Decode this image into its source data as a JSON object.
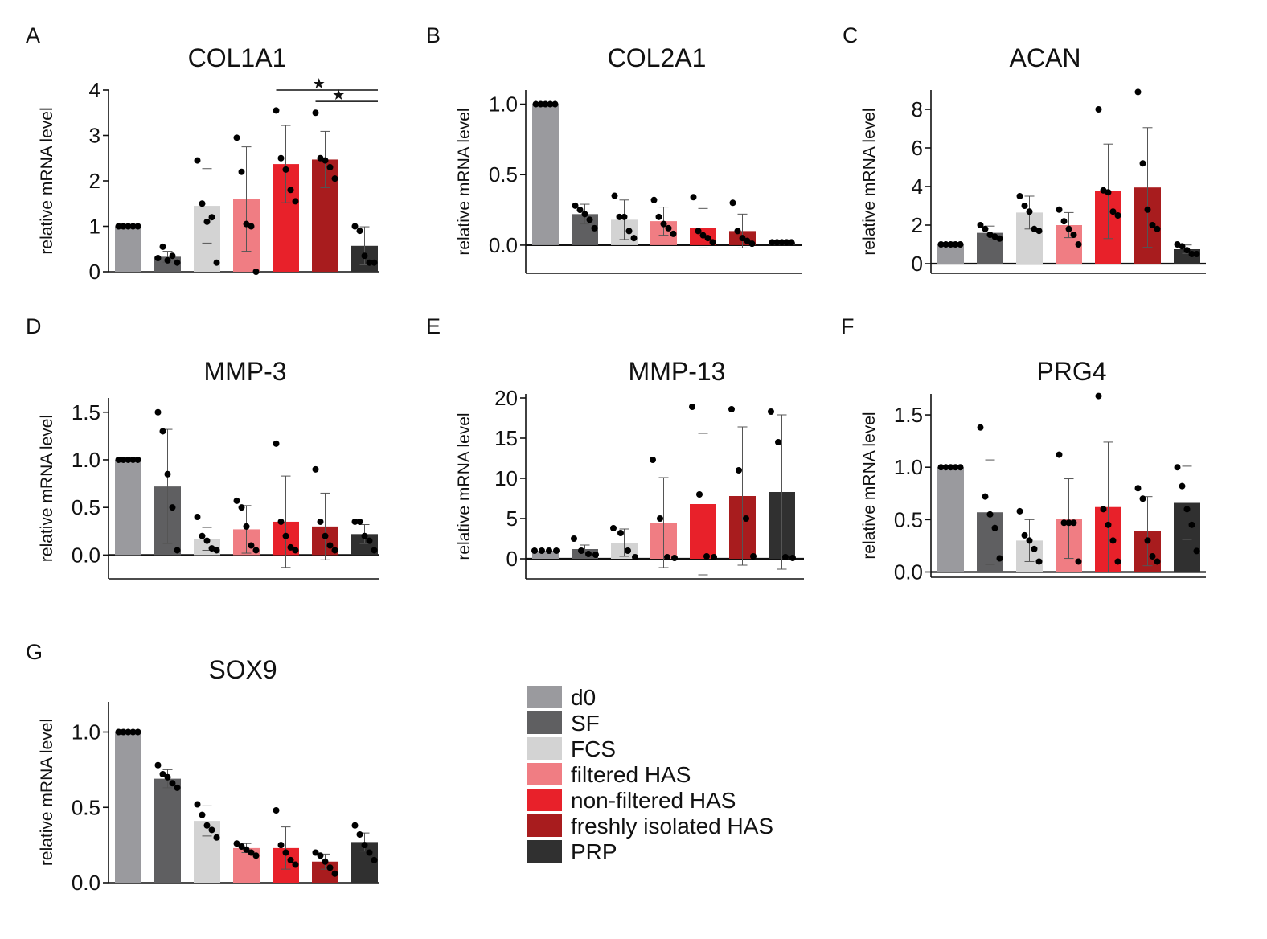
{
  "groups": [
    "d0",
    "SF",
    "FCS",
    "filtered HAS",
    "non-filtered HAS",
    "freshly isolated HAS",
    "PRP"
  ],
  "colors": [
    "#9a9a9e",
    "#5f5f61",
    "#d3d3d3",
    "#f07d83",
    "#e8212a",
    "#a81c1e",
    "#303030"
  ],
  "legend": [
    {
      "label": "d0",
      "color": "#9a9a9e"
    },
    {
      "label": "SF",
      "color": "#5f5f61"
    },
    {
      "label": "FCS",
      "color": "#d3d3d3"
    },
    {
      "label": "filtered HAS",
      "color": "#f07d83"
    },
    {
      "label": "non-filtered HAS",
      "color": "#e8212a"
    },
    {
      "label": "freshly isolated HAS",
      "color": "#a81c1e"
    },
    {
      "label": "PRP",
      "color": "#303030"
    }
  ],
  "chart_data": [
    {
      "id": "A",
      "type": "bar",
      "title": "COL1A1",
      "ylabel": "relative mRNA level",
      "ylim": [
        0,
        4
      ],
      "yticks": [
        0,
        1,
        2,
        3,
        4
      ],
      "tick_labels": [
        "0",
        "1",
        "2",
        "3",
        "4"
      ],
      "categories": [
        "d0",
        "SF",
        "FCS",
        "filtered HAS",
        "non-filtered HAS",
        "freshly isolated HAS",
        "PRP"
      ],
      "values": [
        1.0,
        0.33,
        1.45,
        1.6,
        2.37,
        2.47,
        0.57
      ],
      "sd": [
        0.0,
        0.12,
        0.82,
        1.15,
        0.85,
        0.62,
        0.42
      ],
      "points": [
        [
          1,
          1,
          1,
          1,
          1
        ],
        [
          0.3,
          0.55,
          0.25,
          0.35,
          0.2
        ],
        [
          2.45,
          1.5,
          1.1,
          1.2,
          0.2
        ],
        [
          2.95,
          2.2,
          1.05,
          1.0,
          0.0
        ],
        [
          3.55,
          2.5,
          2.25,
          1.8,
          1.55
        ],
        [
          3.5,
          2.5,
          2.45,
          2.3,
          2.05
        ],
        [
          1.0,
          0.9,
          0.35,
          0.2,
          0.2
        ]
      ],
      "significance": [
        {
          "from": "non-filtered HAS",
          "to": "PRP",
          "label": "★",
          "level": 4.0
        },
        {
          "from": "freshly isolated HAS",
          "to": "PRP",
          "label": "★",
          "level": 3.75
        }
      ]
    },
    {
      "id": "B",
      "type": "bar",
      "title": "COL2A1",
      "ylabel": "relative mRNA level",
      "ylim": [
        -0.2,
        1.1
      ],
      "yticks": [
        0,
        0.5,
        1.0
      ],
      "tick_labels": [
        "0.0",
        "0.5",
        "1.0"
      ],
      "categories": [
        "d0",
        "SF",
        "FCS",
        "filtered HAS",
        "non-filtered HAS",
        "freshly isolated HAS",
        "PRP"
      ],
      "values": [
        1.0,
        0.22,
        0.18,
        0.17,
        0.12,
        0.1,
        0.02
      ],
      "sd": [
        0.0,
        0.07,
        0.14,
        0.1,
        0.14,
        0.12,
        0.005
      ],
      "points": [
        [
          1,
          1,
          1,
          1,
          1
        ],
        [
          0.28,
          0.25,
          0.22,
          0.18,
          0.12
        ],
        [
          0.35,
          0.2,
          0.2,
          0.1,
          0.05
        ],
        [
          0.32,
          0.2,
          0.15,
          0.12,
          0.08
        ],
        [
          0.34,
          0.1,
          0.07,
          0.05,
          0.02
        ],
        [
          0.3,
          0.1,
          0.05,
          0.03,
          0.01
        ],
        [
          0.02,
          0.02,
          0.02,
          0.02,
          0.02
        ]
      ]
    },
    {
      "id": "C",
      "type": "bar",
      "title": "ACAN",
      "ylabel": "relative mRNA level",
      "ylim": [
        -0.5,
        9
      ],
      "yticks": [
        0,
        2,
        4,
        6,
        8
      ],
      "tick_labels": [
        "0",
        "2",
        "4",
        "6",
        "8"
      ],
      "categories": [
        "d0",
        "SF",
        "FCS",
        "filtered HAS",
        "non-filtered HAS",
        "freshly isolated HAS",
        "PRP"
      ],
      "values": [
        1.0,
        1.6,
        2.65,
        2.0,
        3.75,
        3.95,
        0.75
      ],
      "sd": [
        0.0,
        0.35,
        0.85,
        0.65,
        2.45,
        3.1,
        0.22
      ],
      "points": [
        [
          1,
          1,
          1,
          1,
          1
        ],
        [
          2.0,
          1.8,
          1.5,
          1.4,
          1.3
        ],
        [
          3.5,
          3.0,
          2.7,
          1.8,
          1.7
        ],
        [
          2.8,
          2.2,
          1.8,
          1.5,
          1.0
        ],
        [
          8.0,
          3.8,
          3.7,
          2.7,
          2.5
        ],
        [
          8.9,
          5.2,
          2.8,
          2.0,
          1.8
        ],
        [
          1.0,
          0.9,
          0.7,
          0.5,
          0.5
        ]
      ]
    },
    {
      "id": "D",
      "type": "bar",
      "title": "MMP-3",
      "ylabel": "relative mRNA level",
      "ylim": [
        -0.25,
        1.65
      ],
      "yticks": [
        0,
        0.5,
        1.0,
        1.5
      ],
      "tick_labels": [
        "0.0",
        "0.5",
        "1.0",
        "1.5"
      ],
      "categories": [
        "d0",
        "SF",
        "FCS",
        "filtered HAS",
        "non-filtered HAS",
        "freshly isolated HAS",
        "PRP"
      ],
      "values": [
        1.0,
        0.72,
        0.17,
        0.27,
        0.35,
        0.3,
        0.22
      ],
      "sd": [
        0.0,
        0.6,
        0.12,
        0.25,
        0.48,
        0.35,
        0.1
      ],
      "points": [
        [
          1,
          1,
          1,
          1,
          1
        ],
        [
          1.5,
          1.3,
          0.85,
          0.5,
          0.05
        ],
        [
          0.4,
          0.2,
          0.15,
          0.07,
          0.05
        ],
        [
          0.57,
          0.5,
          0.3,
          0.1,
          0.05
        ],
        [
          1.17,
          0.35,
          0.2,
          0.08,
          0.05
        ],
        [
          0.9,
          0.35,
          0.2,
          0.1,
          0.05
        ],
        [
          0.35,
          0.35,
          0.2,
          0.15,
          0.05
        ]
      ]
    },
    {
      "id": "E",
      "type": "bar",
      "title": "MMP-13",
      "ylabel": "relative mRNA level",
      "ylim": [
        -2.5,
        20.5
      ],
      "yticks": [
        0,
        5,
        10,
        15,
        20
      ],
      "tick_labels": [
        "0",
        "5",
        "10",
        "15",
        "20"
      ],
      "categories": [
        "d0",
        "SF",
        "FCS",
        "filtered HAS",
        "non-filtered HAS",
        "freshly isolated HAS",
        "PRP"
      ],
      "values": [
        1.0,
        1.2,
        2.0,
        4.5,
        6.8,
        7.8,
        8.3
      ],
      "sd": [
        0.0,
        0.5,
        1.7,
        5.6,
        8.8,
        8.6,
        9.6
      ],
      "points": [
        [
          1,
          1,
          1,
          1
        ],
        [
          2.5,
          1.0,
          0.6,
          0.5
        ],
        [
          3.8,
          3.2,
          1.0,
          0.2
        ],
        [
          12.3,
          5.0,
          0.2,
          0.1
        ],
        [
          18.9,
          8.0,
          0.3,
          0.2
        ],
        [
          18.6,
          11.0,
          5.0,
          0.3
        ],
        [
          18.3,
          14.5,
          0.2,
          0.1
        ]
      ]
    },
    {
      "id": "F",
      "type": "bar",
      "title": "PRG4",
      "ylabel": "relative mRNA level",
      "ylim": [
        -0.05,
        1.7
      ],
      "yticks": [
        0,
        0.5,
        1.0,
        1.5
      ],
      "tick_labels": [
        "0.0",
        "0.5",
        "1.0",
        "1.5"
      ],
      "categories": [
        "d0",
        "SF",
        "FCS",
        "filtered HAS",
        "non-filtered HAS",
        "freshly isolated HAS",
        "PRP"
      ],
      "values": [
        1.0,
        0.57,
        0.3,
        0.51,
        0.62,
        0.39,
        0.66
      ],
      "sd": [
        0.0,
        0.5,
        0.2,
        0.38,
        0.62,
        0.33,
        0.35
      ],
      "points": [
        [
          1,
          1,
          1,
          1,
          1
        ],
        [
          1.38,
          0.72,
          0.55,
          0.42,
          0.13
        ],
        [
          0.58,
          0.35,
          0.3,
          0.22,
          0.1
        ],
        [
          1.12,
          0.47,
          0.47,
          0.47,
          0.1
        ],
        [
          1.68,
          0.6,
          0.45,
          0.3,
          0.1
        ],
        [
          0.8,
          0.7,
          0.3,
          0.15,
          0.1
        ],
        [
          1.0,
          0.82,
          0.6,
          0.45,
          0.2
        ]
      ]
    },
    {
      "id": "G",
      "type": "bar",
      "title": "SOX9",
      "ylabel": "relative mRNA level",
      "ylim": [
        0,
        1.2
      ],
      "yticks": [
        0,
        0.5,
        1.0
      ],
      "tick_labels": [
        "0.0",
        "0.5",
        "1.0"
      ],
      "categories": [
        "d0",
        "SF",
        "FCS",
        "filtered HAS",
        "non-filtered HAS",
        "freshly isolated HAS",
        "PRP"
      ],
      "values": [
        1.0,
        0.69,
        0.41,
        0.23,
        0.23,
        0.14,
        0.27
      ],
      "sd": [
        0.0,
        0.06,
        0.1,
        0.03,
        0.14,
        0.05,
        0.06
      ],
      "points": [
        [
          1,
          1,
          1,
          1,
          1
        ],
        [
          0.78,
          0.72,
          0.7,
          0.66,
          0.63
        ],
        [
          0.52,
          0.45,
          0.38,
          0.35,
          0.3
        ],
        [
          0.26,
          0.24,
          0.22,
          0.2,
          0.18
        ],
        [
          0.48,
          0.25,
          0.2,
          0.15,
          0.12
        ],
        [
          0.2,
          0.18,
          0.14,
          0.1,
          0.06
        ],
        [
          0.38,
          0.32,
          0.25,
          0.2,
          0.15
        ]
      ]
    }
  ]
}
